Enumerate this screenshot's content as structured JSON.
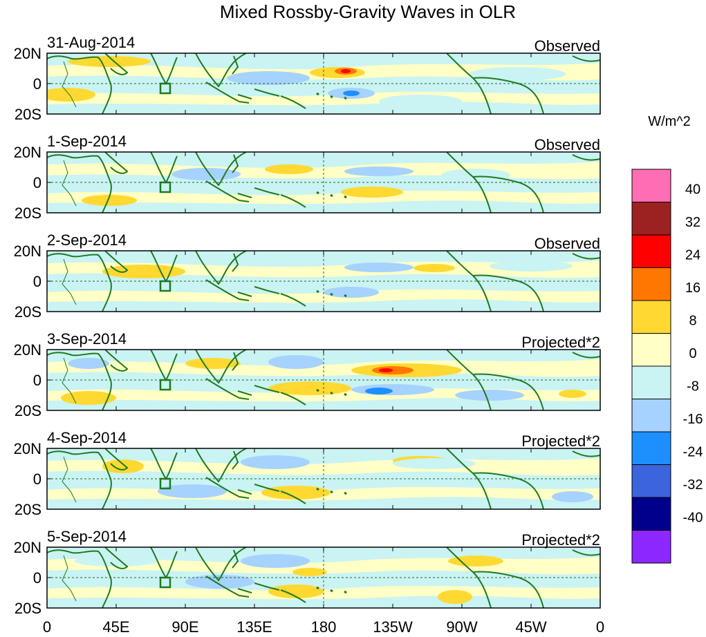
{
  "title": "Mixed Rossby-Gravity Waves in OLR",
  "units_label": "W/m^2",
  "panels": [
    {
      "date": "31-Aug-2014",
      "mode": "Observed"
    },
    {
      "date": "1-Sep-2014",
      "mode": "Observed"
    },
    {
      "date": "2-Sep-2014",
      "mode": "Observed"
    },
    {
      "date": "3-Sep-2014",
      "mode": "Projected*2"
    },
    {
      "date": "4-Sep-2014",
      "mode": "Projected*2"
    },
    {
      "date": "5-Sep-2014",
      "mode": "Projected*2"
    }
  ],
  "lat_ticks": [
    "20N",
    "0",
    "20S"
  ],
  "lon_ticks": [
    "0",
    "45E",
    "90E",
    "135E",
    "180",
    "135W",
    "90W",
    "45W",
    "0"
  ],
  "colorbar": {
    "labels": [
      "40",
      "32",
      "24",
      "16",
      "8",
      "0",
      "-8",
      "-16",
      "-24",
      "-32",
      "-40"
    ],
    "colors": [
      "#ff6eb4",
      "#9c2222",
      "#ff0000",
      "#ff7700",
      "#ffd932",
      "#ffffc6",
      "#caf3f3",
      "#a6d2ff",
      "#1e8fff",
      "#3c64dc",
      "#00008c",
      "#8c28ff"
    ]
  },
  "map_colors": {
    "land": "#1f7a1f",
    "neutral": "#ffffc6",
    "neg_weak": "#caf3f3",
    "neg_mid": "#a6d2ff",
    "neg_strong": "#1e8fff",
    "pos_weak": "#ffd932",
    "pos_mid": "#ff7700",
    "pos_strong": "#ff0000"
  }
}
